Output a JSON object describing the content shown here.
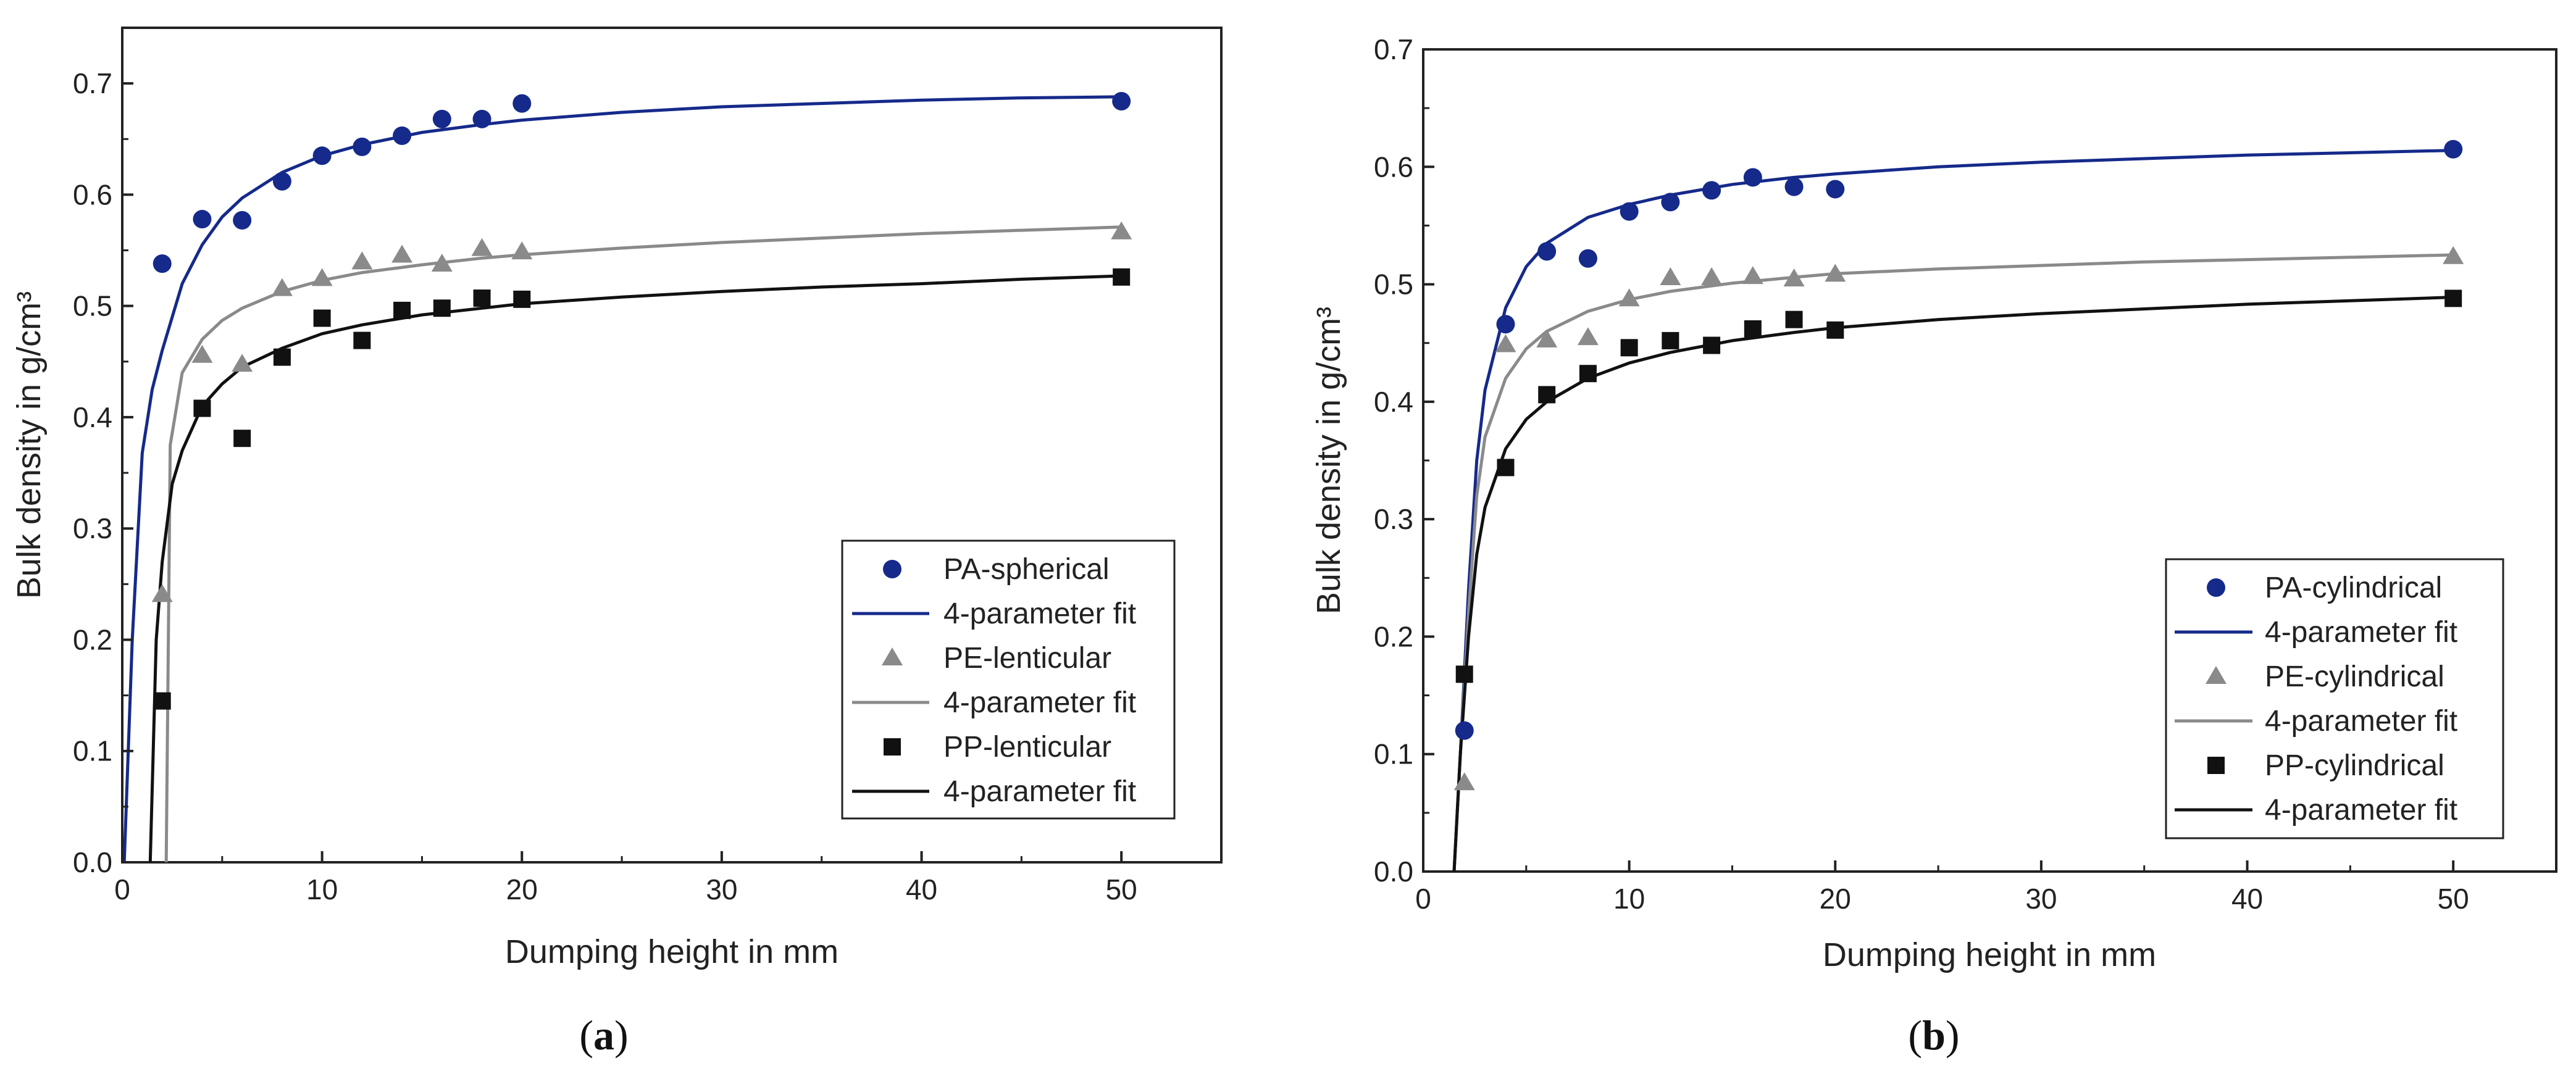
{
  "chart_data": [
    {
      "type": "scatter",
      "caption_letter": "a",
      "caption_open": "(",
      "caption_close": ")",
      "xlabel": "Dumping height in mm",
      "ylabel": "Bulk density in g/cm³",
      "xlim": [
        0,
        55
      ],
      "ylim": [
        0,
        0.75
      ],
      "xticks": [
        "0",
        "10",
        "20",
        "30",
        "40",
        "50"
      ],
      "yticks": [
        "0.0",
        "0.1",
        "0.2",
        "0.3",
        "0.4",
        "0.5",
        "0.6",
        "0.7"
      ],
      "series": [
        {
          "name": "PA-spherical",
          "marker": "circle",
          "color": "#152a8a",
          "x": [
            2,
            4,
            6,
            8,
            10,
            12,
            14,
            16,
            18,
            20,
            50
          ],
          "y": [
            0.538,
            0.578,
            0.577,
            0.612,
            0.635,
            0.643,
            0.653,
            0.668,
            0.668,
            0.682,
            0.684
          ],
          "fit_name": "4-parameter fit",
          "fit": {
            "x": [
              0.1,
              0.5,
              1.0,
              1.5,
              2,
              3,
              4,
              5,
              6,
              8,
              10,
              12,
              15,
              18,
              20,
              25,
              30,
              35,
              40,
              45,
              50
            ],
            "y": [
              0.0,
              0.2,
              0.368,
              0.425,
              0.46,
              0.52,
              0.555,
              0.58,
              0.597,
              0.62,
              0.635,
              0.645,
              0.656,
              0.663,
              0.667,
              0.674,
              0.679,
              0.682,
              0.685,
              0.687,
              0.688
            ]
          }
        },
        {
          "name": "PE-lenticular",
          "marker": "triangle",
          "color": "#8a8a8a",
          "x": [
            2,
            4,
            6,
            8,
            10,
            12,
            14,
            16,
            18,
            20,
            50
          ],
          "y": [
            0.24,
            0.455,
            0.447,
            0.515,
            0.524,
            0.539,
            0.545,
            0.537,
            0.551,
            0.548,
            0.566
          ],
          "fit_name": "4-parameter fit",
          "fit": {
            "x": [
              2.2,
              2.4,
              3,
              4,
              5,
              6,
              8,
              10,
              12,
              15,
              18,
              20,
              25,
              30,
              35,
              40,
              45,
              50
            ],
            "y": [
              0.0,
              0.375,
              0.44,
              0.47,
              0.487,
              0.498,
              0.513,
              0.523,
              0.53,
              0.537,
              0.543,
              0.546,
              0.552,
              0.557,
              0.561,
              0.565,
              0.568,
              0.571
            ]
          }
        },
        {
          "name": "PP-lenticular",
          "marker": "square",
          "color": "#111111",
          "x": [
            2,
            4,
            6,
            8,
            10,
            12,
            14,
            16,
            18,
            20,
            50
          ],
          "y": [
            0.145,
            0.408,
            0.381,
            0.454,
            0.489,
            0.469,
            0.496,
            0.498,
            0.507,
            0.506,
            0.526
          ],
          "fit_name": "4-parameter fit",
          "fit": {
            "x": [
              1.4,
              1.7,
              2,
              2.5,
              3,
              4,
              5,
              6,
              8,
              10,
              12,
              15,
              18,
              20,
              25,
              30,
              35,
              40,
              45,
              50
            ],
            "y": [
              0.0,
              0.2,
              0.27,
              0.34,
              0.37,
              0.41,
              0.43,
              0.445,
              0.462,
              0.475,
              0.483,
              0.492,
              0.498,
              0.502,
              0.508,
              0.513,
              0.517,
              0.52,
              0.524,
              0.527
            ]
          }
        }
      ]
    },
    {
      "type": "scatter",
      "caption_letter": "b",
      "caption_open": "(",
      "caption_close": ")",
      "xlabel": "Dumping height in mm",
      "ylabel": "Bulk density in g/cm³",
      "xlim": [
        0,
        55
      ],
      "ylim": [
        0,
        0.7
      ],
      "xticks": [
        "0",
        "10",
        "20",
        "30",
        "40",
        "50"
      ],
      "yticks": [
        "0.0",
        "0.1",
        "0.2",
        "0.3",
        "0.4",
        "0.5",
        "0.6",
        "0.7"
      ],
      "series": [
        {
          "name": "PA-cylindrical",
          "marker": "circle",
          "color": "#152a8a",
          "x": [
            2,
            4,
            6,
            8,
            10,
            12,
            14,
            16,
            18,
            20,
            50
          ],
          "y": [
            0.12,
            0.466,
            0.528,
            0.522,
            0.562,
            0.57,
            0.58,
            0.591,
            0.583,
            0.581,
            0.615
          ],
          "fit_name": "4-parameter fit",
          "fit": {
            "x": [
              1.5,
              1.8,
              2.2,
              2.6,
              3,
              4,
              5,
              6,
              8,
              10,
              12,
              15,
              18,
              20,
              25,
              30,
              35,
              40,
              45,
              50
            ],
            "y": [
              0.0,
              0.1,
              0.24,
              0.35,
              0.41,
              0.48,
              0.515,
              0.535,
              0.557,
              0.568,
              0.576,
              0.585,
              0.591,
              0.594,
              0.6,
              0.604,
              0.607,
              0.61,
              0.612,
              0.614
            ]
          }
        },
        {
          "name": "PE-cylindrical",
          "marker": "triangle",
          "color": "#8a8a8a",
          "x": [
            2,
            4,
            6,
            8,
            10,
            12,
            14,
            16,
            18,
            20,
            50
          ],
          "y": [
            0.075,
            0.448,
            0.452,
            0.454,
            0.487,
            0.505,
            0.505,
            0.506,
            0.504,
            0.508,
            0.523
          ],
          "fit_name": "4-parameter fit",
          "fit": {
            "x": [
              1.5,
              1.8,
              2.2,
              2.6,
              3,
              4,
              5,
              6,
              8,
              10,
              12,
              15,
              18,
              20,
              25,
              30,
              35,
              40,
              45,
              50
            ],
            "y": [
              0.0,
              0.1,
              0.22,
              0.32,
              0.37,
              0.42,
              0.445,
              0.46,
              0.477,
              0.487,
              0.494,
              0.501,
              0.506,
              0.509,
              0.513,
              0.516,
              0.519,
              0.521,
              0.523,
              0.525
            ]
          }
        },
        {
          "name": "PP-cylindrical",
          "marker": "square",
          "color": "#111111",
          "x": [
            2,
            4,
            6,
            8,
            10,
            12,
            14,
            16,
            18,
            20,
            50
          ],
          "y": [
            0.168,
            0.344,
            0.406,
            0.424,
            0.446,
            0.452,
            0.448,
            0.462,
            0.47,
            0.461,
            0.488
          ],
          "fit_name": "4-parameter fit",
          "fit": {
            "x": [
              1.5,
              1.8,
              2.2,
              2.6,
              3,
              4,
              5,
              6,
              8,
              10,
              12,
              15,
              18,
              20,
              25,
              30,
              35,
              40,
              45,
              50
            ],
            "y": [
              0.0,
              0.1,
              0.2,
              0.27,
              0.31,
              0.36,
              0.385,
              0.4,
              0.42,
              0.433,
              0.442,
              0.452,
              0.459,
              0.463,
              0.47,
              0.475,
              0.479,
              0.483,
              0.486,
              0.489
            ]
          }
        }
      ]
    }
  ]
}
